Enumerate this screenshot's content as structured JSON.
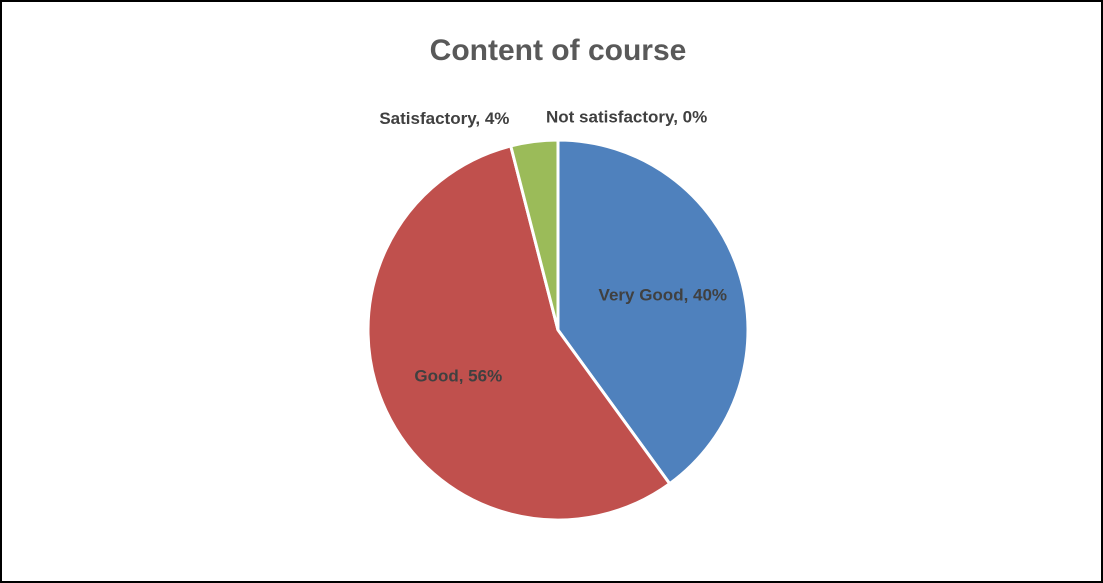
{
  "chart_data": {
    "type": "pie",
    "title": "Content of course",
    "values": [
      40,
      56,
      4,
      0
    ],
    "value_labels": [
      "Very Good, 40%",
      "Good, 56%",
      "Satisfactory, 4%",
      "Not satisfactory, 0%"
    ],
    "colors": [
      "#4f81bd",
      "#c0504d",
      "#9bbb59",
      "#8064a2"
    ]
  }
}
